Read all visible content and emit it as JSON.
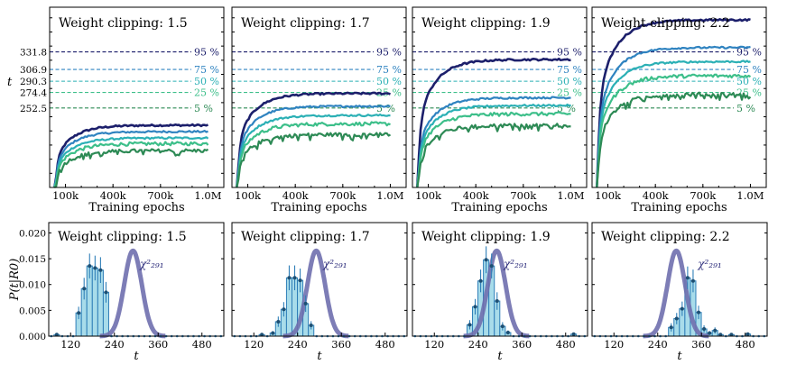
{
  "colors": {
    "p95": "#1c1f6b",
    "p75": "#2f83c0",
    "p50": "#2bb0b5",
    "p25": "#3dbf8a",
    "p5": "#2d8a55",
    "hist_fill": "#a8dcea",
    "hist_edge": "#2f7fb8",
    "chi_curve": "#6f6fae"
  },
  "chart_data": [
    {
      "type": "line",
      "title": "Weight clipping: 1.5",
      "xlabel": "Training epochs",
      "ylabel": "t",
      "x_ticks": [
        "100k",
        "400k",
        "700k",
        "1.0M"
      ],
      "xlim": [
        0,
        1100000
      ],
      "ylim": [
        140,
        395
      ],
      "y_ticks": [
        {
          "label": "331.8",
          "value": 331.8
        },
        {
          "label": "306.9",
          "value": 306.9
        },
        {
          "label": "290.3",
          "value": 290.3
        },
        {
          "label": "274.4",
          "value": 274.4
        },
        {
          "label": "252.5",
          "value": 252.5
        }
      ],
      "thresholds": [
        {
          "pct": "95 %",
          "value": 331.8
        },
        {
          "pct": "75 %",
          "value": 306.9
        },
        {
          "pct": "50 %",
          "value": 290.3
        },
        {
          "pct": "25 %",
          "value": 274.4
        },
        {
          "pct": "5 %",
          "value": 252.5
        }
      ],
      "series": [
        {
          "name": "95 %",
          "final": 228
        },
        {
          "name": "75 %",
          "final": 219
        },
        {
          "name": "50 %",
          "final": 210
        },
        {
          "name": "25 %",
          "final": 202
        },
        {
          "name": "5 %",
          "final": 192
        }
      ]
    },
    {
      "type": "line",
      "title": "Weight clipping: 1.7",
      "xlabel": "Training epochs",
      "ylabel": "t",
      "x_ticks": [
        "100k",
        "400k",
        "700k",
        "1.0M"
      ],
      "xlim": [
        0,
        1100000
      ],
      "ylim": [
        140,
        395
      ],
      "thresholds": [
        {
          "pct": "95 %",
          "value": 331.8
        },
        {
          "pct": "75 %",
          "value": 306.9
        },
        {
          "pct": "50 %",
          "value": 290.3
        },
        {
          "pct": "25 %",
          "value": 274.4
        },
        {
          "pct": "5 %",
          "value": 252.5
        }
      ],
      "series": [
        {
          "name": "95 %",
          "final": 273
        },
        {
          "name": "75 %",
          "final": 255
        },
        {
          "name": "50 %",
          "final": 242
        },
        {
          "name": "25 %",
          "final": 230
        },
        {
          "name": "5 %",
          "final": 215
        }
      ]
    },
    {
      "type": "line",
      "title": "Weight clipping: 1.9",
      "xlabel": "Training epochs",
      "ylabel": "t",
      "x_ticks": [
        "100k",
        "400k",
        "700k",
        "1.0M"
      ],
      "xlim": [
        0,
        1100000
      ],
      "ylim": [
        140,
        395
      ],
      "thresholds": [
        {
          "pct": "95 %",
          "value": 331.8
        },
        {
          "pct": "75 %",
          "value": 306.9
        },
        {
          "pct": "50 %",
          "value": 290.3
        },
        {
          "pct": "25 %",
          "value": 274.4
        },
        {
          "pct": "5 %",
          "value": 252.5
        }
      ],
      "series": [
        {
          "name": "95 %",
          "final": 321
        },
        {
          "name": "75 %",
          "final": 267
        },
        {
          "name": "50 %",
          "final": 256
        },
        {
          "name": "25 %",
          "final": 244
        },
        {
          "name": "5 %",
          "final": 228
        }
      ]
    },
    {
      "type": "line",
      "title": "Weight clipping: 2.2",
      "xlabel": "Training epochs",
      "ylabel": "t",
      "x_ticks": [
        "100k",
        "400k",
        "700k",
        "1.0M"
      ],
      "xlim": [
        0,
        1100000
      ],
      "ylim": [
        140,
        395
      ],
      "thresholds": [
        {
          "pct": "95 %",
          "value": 331.8
        },
        {
          "pct": "75 %",
          "value": 306.9
        },
        {
          "pct": "50 %",
          "value": 290.3
        },
        {
          "pct": "25 %",
          "value": 274.4
        },
        {
          "pct": "5 %",
          "value": 252.5
        }
      ],
      "series": [
        {
          "name": "95 %",
          "final": 377
        },
        {
          "name": "75 %",
          "final": 338
        },
        {
          "name": "50 %",
          "final": 318
        },
        {
          "name": "25 %",
          "final": 298
        },
        {
          "name": "5 %",
          "final": 272
        }
      ]
    },
    {
      "type": "bar",
      "title": "Weight clipping: 1.5",
      "xlabel": "t",
      "ylabel": "P(t|R_0)",
      "ylabel_text": "P(t|R0)",
      "xlim": [
        60,
        540
      ],
      "ylim": [
        0,
        0.022
      ],
      "x_ticks": [
        "120",
        "240",
        "360",
        "480"
      ],
      "y_ticks": [
        "0.000",
        "0.005",
        "0.010",
        "0.015",
        "0.020"
      ],
      "curve_label": "χ²₂₉₁",
      "bin_width": 15,
      "bins": [
        {
          "x": 82,
          "v": 0.0003,
          "err": 0.0003
        },
        {
          "x": 142,
          "v": 0.0045,
          "err": 0.0012
        },
        {
          "x": 157,
          "v": 0.0092,
          "err": 0.0021
        },
        {
          "x": 172,
          "v": 0.0136,
          "err": 0.0024
        },
        {
          "x": 187,
          "v": 0.0132,
          "err": 0.0024
        },
        {
          "x": 202,
          "v": 0.0128,
          "err": 0.0025
        },
        {
          "x": 217,
          "v": 0.0085,
          "err": 0.002
        }
      ]
    },
    {
      "type": "bar",
      "title": "Weight clipping: 1.7",
      "xlabel": "t",
      "ylabel": "P(t|R_0)",
      "xlim": [
        60,
        540
      ],
      "ylim": [
        0,
        0.022
      ],
      "x_ticks": [
        "120",
        "240",
        "360",
        "480"
      ],
      "curve_label": "χ²₂₉₁",
      "bin_width": 15,
      "bins": [
        {
          "x": 142,
          "v": 0.0003,
          "err": 0.0003
        },
        {
          "x": 172,
          "v": 0.0006,
          "err": 0.0004
        },
        {
          "x": 187,
          "v": 0.0028,
          "err": 0.001
        },
        {
          "x": 202,
          "v": 0.0052,
          "err": 0.0014
        },
        {
          "x": 217,
          "v": 0.0113,
          "err": 0.0024
        },
        {
          "x": 232,
          "v": 0.0113,
          "err": 0.0024
        },
        {
          "x": 247,
          "v": 0.0108,
          "err": 0.0023
        },
        {
          "x": 262,
          "v": 0.0063,
          "err": 0.0016
        },
        {
          "x": 277,
          "v": 0.0021,
          "err": 0.0008
        }
      ]
    },
    {
      "type": "bar",
      "title": "Weight clipping: 1.9",
      "xlabel": "t",
      "ylabel": "P(t|R_0)",
      "xlim": [
        60,
        540
      ],
      "ylim": [
        0,
        0.022
      ],
      "x_ticks": [
        "120",
        "240",
        "360",
        "480"
      ],
      "curve_label": "χ²₂₉₁",
      "bin_width": 15,
      "bins": [
        {
          "x": 217,
          "v": 0.0022,
          "err": 0.0009
        },
        {
          "x": 232,
          "v": 0.0057,
          "err": 0.0015
        },
        {
          "x": 247,
          "v": 0.0107,
          "err": 0.0022
        },
        {
          "x": 262,
          "v": 0.0148,
          "err": 0.0026
        },
        {
          "x": 277,
          "v": 0.0136,
          "err": 0.0024
        },
        {
          "x": 292,
          "v": 0.0068,
          "err": 0.0017
        },
        {
          "x": 307,
          "v": 0.0019,
          "err": 0.0008
        },
        {
          "x": 322,
          "v": 0.0007,
          "err": 0.0004
        },
        {
          "x": 502,
          "v": 0.0004,
          "err": 0.0003
        }
      ]
    },
    {
      "type": "bar",
      "title": "Weight clipping: 2.2",
      "xlabel": "t",
      "ylabel": "P(t|R_0)",
      "xlim": [
        60,
        540
      ],
      "ylim": [
        0,
        0.022
      ],
      "x_ticks": [
        "120",
        "240",
        "360",
        "480"
      ],
      "curve_label": "χ²₂₉₁",
      "bin_width": 15,
      "bins": [
        {
          "x": 277,
          "v": 0.0017,
          "err": 0.0008
        },
        {
          "x": 292,
          "v": 0.0034,
          "err": 0.0011
        },
        {
          "x": 307,
          "v": 0.0053,
          "err": 0.0014
        },
        {
          "x": 322,
          "v": 0.0113,
          "err": 0.0022
        },
        {
          "x": 337,
          "v": 0.0107,
          "err": 0.0022
        },
        {
          "x": 352,
          "v": 0.0046,
          "err": 0.0013
        },
        {
          "x": 367,
          "v": 0.0014,
          "err": 0.0007
        },
        {
          "x": 382,
          "v": 0.0006,
          "err": 0.0004
        },
        {
          "x": 397,
          "v": 0.0011,
          "err": 0.0006
        },
        {
          "x": 412,
          "v": 0.0003,
          "err": 0.0003
        },
        {
          "x": 442,
          "v": 0.0003,
          "err": 0.0003
        },
        {
          "x": 487,
          "v": 0.0004,
          "err": 0.0003
        }
      ]
    }
  ]
}
